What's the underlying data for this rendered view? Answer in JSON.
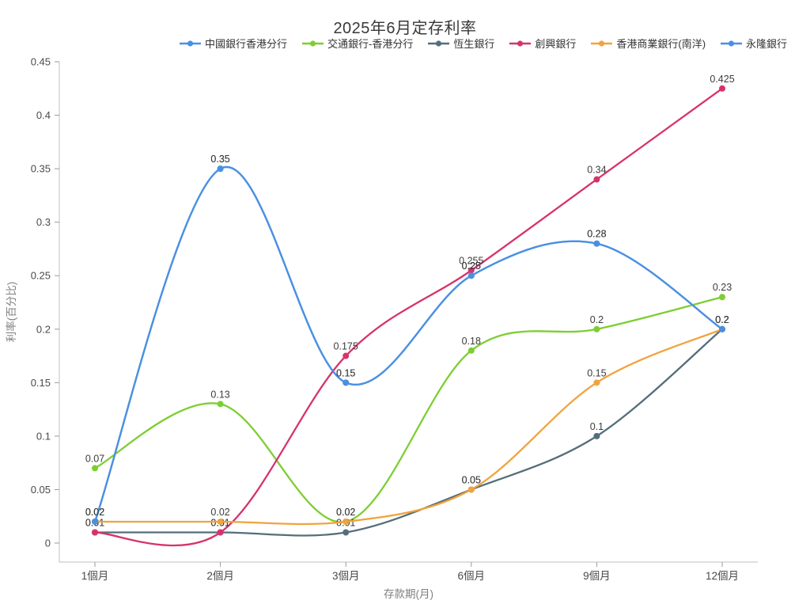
{
  "title": "2025年6月定存利率",
  "chart_data": {
    "type": "line",
    "title": "2025年6月定存利率",
    "xlabel": "存款期(月)",
    "ylabel": "利率(百分比)",
    "categories": [
      "1個月",
      "2個月",
      "3個月",
      "6個月",
      "9個月",
      "12個月"
    ],
    "series": [
      {
        "name": "中國銀行香港分行",
        "color": "#4a90e2",
        "values": [
          0.02,
          0.35,
          0.15,
          0.25,
          0.28,
          0.2
        ]
      },
      {
        "name": "交通銀行-香港分行",
        "color": "#7dce32",
        "values": [
          0.07,
          0.13,
          0.02,
          0.18,
          0.2,
          0.23
        ]
      },
      {
        "name": "恆生銀行",
        "color": "#546e7a",
        "values": [
          0.01,
          0.01,
          0.01,
          0.05,
          0.1,
          0.2
        ]
      },
      {
        "name": "創興銀行",
        "color": "#d6336c",
        "values": [
          0.01,
          0.01,
          0.175,
          0.255,
          0.34,
          0.425
        ]
      },
      {
        "name": "香港商業銀行(南洋)",
        "color": "#f1a33c",
        "values": [
          0.02,
          0.02,
          0.02,
          0.05,
          0.15,
          0.2
        ]
      },
      {
        "name": "永隆銀行",
        "color": "#4a90e2",
        "values": [
          0.02,
          0.35,
          0.15,
          0.25,
          0.28,
          0.2
        ]
      }
    ],
    "yticks": [
      0,
      0.05,
      0.1,
      0.15,
      0.2,
      0.25,
      0.3,
      0.35,
      0.4,
      0.45
    ],
    "ylim": [
      0,
      0.45
    ],
    "smooth": true,
    "show_point_labels": true,
    "legend_position": "top",
    "grid": false,
    "colors": {
      "axis_line": "#cccccc",
      "tick_mark": "#999999",
      "tick_label": "#4a4a4a",
      "point_label": "#3c3c3c",
      "axis_title": "#808080",
      "background": "#ffffff"
    }
  }
}
